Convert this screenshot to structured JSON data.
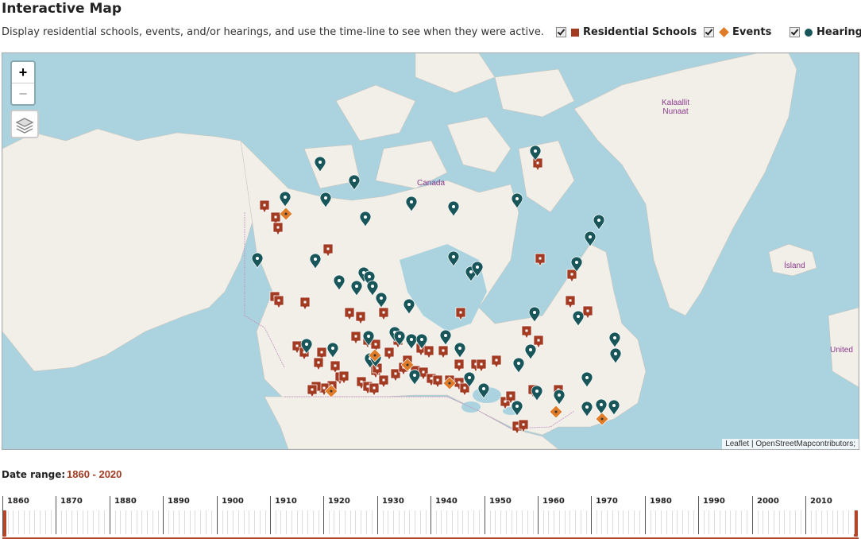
{
  "header": {
    "title": "Interactive Map",
    "subtitle": "Display residential schools, events, and/or hearings, and use the time-line to see when they were active."
  },
  "legend": {
    "schools_label": "Residential Schools",
    "events_label": "Events",
    "hearings_label": "Hearings",
    "schools_checked": true,
    "events_checked": true,
    "hearings_checked": true
  },
  "colors": {
    "school": "#a23b22",
    "event": "#e07b28",
    "hearing": "#19565a",
    "water": "#aad3df",
    "land": "#f2efe9",
    "accent": "#b3452a"
  },
  "map": {
    "zoom_in": "+",
    "zoom_out": "−",
    "labels": {
      "canada": "Canada",
      "greenland": "Kalaallit\nNunaat",
      "iceland": "Ísland",
      "united": "United"
    },
    "attribution": "Leaflet | OpenStreetMapcontributors;"
  },
  "date_range": {
    "label": "Date range:",
    "value": "1860 - 2020"
  },
  "timeline": {
    "decades": [
      "1860",
      "1870",
      "1880",
      "1890",
      "1900",
      "1910",
      "1920",
      "1930",
      "1940",
      "1950",
      "1960",
      "1970",
      "1980",
      "1990",
      "2000",
      "2010"
    ]
  }
}
